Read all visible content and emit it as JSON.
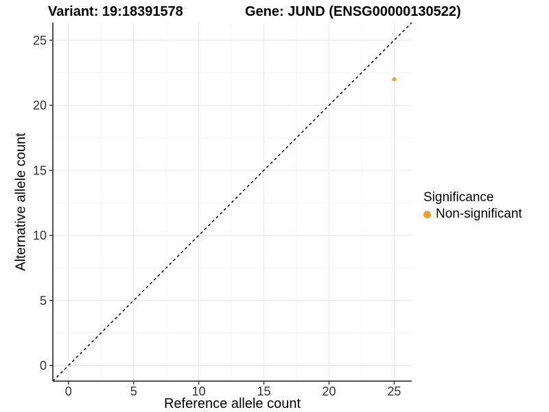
{
  "chart_data": {
    "type": "scatter",
    "title": {
      "left": "Variant: 19:18391578",
      "right": "Gene: JUND (ENSG00000130522)"
    },
    "xlabel": "Reference allele count",
    "ylabel": "Alternative allele count",
    "xlim": [
      -1.2,
      26.35
    ],
    "ylim": [
      -1.2,
      26.35
    ],
    "xticks": [
      0,
      5,
      10,
      15,
      20,
      25
    ],
    "yticks": [
      0,
      5,
      10,
      15,
      20,
      25
    ],
    "grid": {
      "major": true,
      "minor": true
    },
    "identity_line": {
      "equation": "y = x",
      "style": "dashed",
      "color": "#000000"
    },
    "series": [
      {
        "name": "Non-significant",
        "color": "#FB9E24",
        "points": [
          {
            "x": 25,
            "y": 22
          }
        ]
      }
    ],
    "legend": {
      "title": "Significance",
      "position": "right",
      "entries": [
        {
          "label": "Non-significant",
          "color": "#FB9E24"
        }
      ]
    },
    "colors": {
      "grid_major": "#E9E9E9",
      "grid_minor": "#F4F4F4",
      "axis": "#3C3C3C",
      "tick_label": "#333333"
    }
  }
}
